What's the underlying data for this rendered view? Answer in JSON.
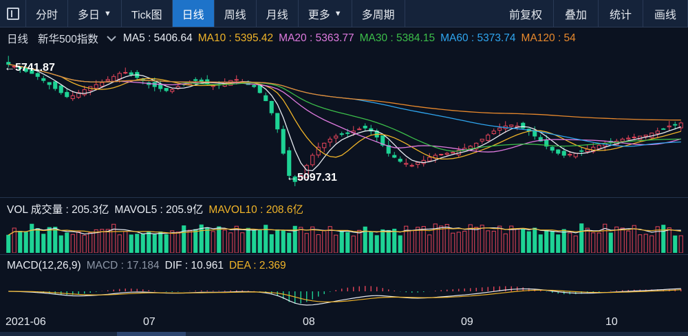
{
  "toolbar": {
    "tabs": [
      {
        "label": "分时",
        "active": false,
        "caret": false
      },
      {
        "label": "多日",
        "active": false,
        "caret": true
      },
      {
        "label": "Tick图",
        "active": false,
        "caret": false
      },
      {
        "label": "日线",
        "active": true,
        "caret": false
      },
      {
        "label": "周线",
        "active": false,
        "caret": false
      },
      {
        "label": "月线",
        "active": false,
        "caret": false
      },
      {
        "label": "更多",
        "active": false,
        "caret": true
      },
      {
        "label": "多周期",
        "active": false,
        "caret": false
      }
    ],
    "right": [
      "前复权",
      "叠加",
      "统计",
      "画线"
    ],
    "caret_glyph": "▼"
  },
  "price_header": {
    "period": "日线",
    "symbol": "新华500指数",
    "items": [
      {
        "text": "MA5 : 5406.64",
        "color": "#e8ecf2"
      },
      {
        "text": "MA10 : 5395.42",
        "color": "#f0b429"
      },
      {
        "text": "MA20 : 5363.77",
        "color": "#e07be0"
      },
      {
        "text": "MA30 : 5384.15",
        "color": "#3cbf4a"
      },
      {
        "text": "MA60 : 5373.74",
        "color": "#2fa6f0"
      },
      {
        "text": "MA120 : 54",
        "color": "#e9892c"
      }
    ]
  },
  "price_labels": {
    "high": "←5741.87",
    "low": "←5097.31"
  },
  "vol_header": {
    "items": [
      {
        "text": "VOL 成交量 : 205.3亿",
        "color": "#e8ecf2"
      },
      {
        "text": "MAVOL5 : 205.9亿",
        "color": "#e8ecf2"
      },
      {
        "text": "MAVOL10 : 208.6亿",
        "color": "#f0b429"
      }
    ]
  },
  "macd_header": {
    "items": [
      {
        "text": "MACD(12,26,9)",
        "color": "#e8ecf2"
      },
      {
        "text": "MACD : 17.184",
        "color": "#8c96a6"
      },
      {
        "text": "DIF : 10.961",
        "color": "#e8ecf2"
      },
      {
        "text": "DEA : 2.369",
        "color": "#f0b429"
      }
    ]
  },
  "date_axis": [
    "2021-06",
    "07",
    "08",
    "09",
    "10"
  ],
  "colors": {
    "up": "#e8455a",
    "down": "#1ed395",
    "bg": "#0b1220"
  },
  "chart_data": {
    "type": "candlestick",
    "high_mark": 5741.87,
    "low_mark": 5097.31,
    "closes": [
      5700,
      5690,
      5680,
      5665,
      5655,
      5640,
      5620,
      5600,
      5580,
      5560,
      5540,
      5545,
      5560,
      5575,
      5590,
      5600,
      5610,
      5625,
      5640,
      5655,
      5660,
      5650,
      5635,
      5620,
      5600,
      5590,
      5580,
      5570,
      5575,
      5590,
      5600,
      5610,
      5620,
      5615,
      5605,
      5595,
      5600,
      5610,
      5620,
      5625,
      5615,
      5600,
      5590,
      5560,
      5520,
      5460,
      5380,
      5260,
      5150,
      5120,
      5150,
      5200,
      5250,
      5290,
      5310,
      5330,
      5345,
      5355,
      5360,
      5370,
      5380,
      5385,
      5370,
      5340,
      5300,
      5260,
      5240,
      5220,
      5210,
      5200,
      5215,
      5225,
      5240,
      5250,
      5255,
      5260,
      5265,
      5275,
      5285,
      5295,
      5310,
      5330,
      5350,
      5370,
      5385,
      5395,
      5400,
      5395,
      5385,
      5370,
      5345,
      5320,
      5295,
      5275,
      5260,
      5250,
      5255,
      5260,
      5270,
      5280,
      5290,
      5300,
      5310,
      5315,
      5320,
      5330,
      5335,
      5340,
      5345,
      5350,
      5360,
      5370,
      5380,
      5395,
      5400,
      5410
    ],
    "ma_series": [
      {
        "name": "MA5",
        "color": "#e8ecf2"
      },
      {
        "name": "MA10",
        "color": "#f0b429"
      },
      {
        "name": "MA20",
        "color": "#e07be0"
      },
      {
        "name": "MA30",
        "color": "#3cbf4a"
      },
      {
        "name": "MA60",
        "color": "#2fa6f0"
      },
      {
        "name": "MA120",
        "color": "#e9892c"
      }
    ],
    "volume_last": 205.3,
    "mavol5_last": 205.9,
    "mavol10_last": 208.6,
    "macd_last": 17.184,
    "dif_last": 10.961,
    "dea_last": 2.369
  }
}
